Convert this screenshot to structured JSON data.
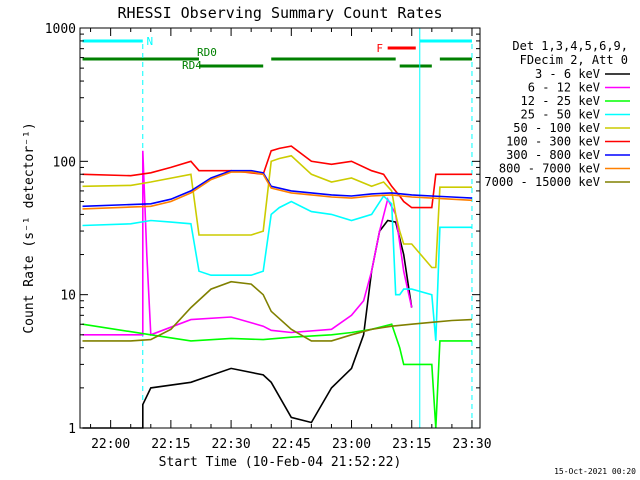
{
  "chart_data": {
    "type": "line",
    "title": "RHESSI Observing Summary Count Rates",
    "xlabel": "Start Time (10-Feb-04 21:52:22)",
    "ylabel": "Count Rate (s⁻¹ detector⁻¹)",
    "yscale": "log",
    "ylim": [
      1,
      1000
    ],
    "xlim": [
      "21:52:22",
      "23:32:00"
    ],
    "grid": false,
    "legend_position": "right",
    "x_ticks": [
      "22:00",
      "22:15",
      "22:30",
      "22:45",
      "23:00",
      "23:15",
      "23:30"
    ],
    "y_ticks": [
      "1",
      "10",
      "100",
      "1000"
    ],
    "legend_header": [
      "Det 1,3,4,5,6,9,",
      "FDecim 2, Att 0"
    ],
    "timestamp": "15-Oct-2021 00:20",
    "flags": [
      {
        "label": "N",
        "color": "#00ffff",
        "segments": [
          [
            "21:53",
            "22:08"
          ],
          [
            "23:17",
            "23:30"
          ]
        ]
      },
      {
        "label": "F",
        "color": "#ff0000",
        "segments": [
          [
            "23:09",
            "23:16"
          ]
        ]
      },
      {
        "label": "RD0",
        "color": "#008000",
        "segments": [
          [
            "21:53",
            "22:22"
          ],
          [
            "22:40",
            "23:11"
          ],
          [
            "23:22",
            "23:30"
          ]
        ]
      },
      {
        "label": "RD4",
        "color": "#008000",
        "segments": [
          [
            "22:22",
            "22:38"
          ],
          [
            "23:12",
            "23:20"
          ]
        ]
      }
    ],
    "series": [
      {
        "name": "3 - 6 keV",
        "color": "#000000",
        "x": [
          "21:53",
          "22:08",
          "22:08",
          "22:10",
          "22:20",
          "22:30",
          "22:38",
          "22:40",
          "22:45",
          "22:50",
          "22:55",
          "23:00",
          "23:03",
          "23:05",
          "23:07",
          "23:09",
          "23:11",
          "23:13",
          "23:15"
        ],
        "y": [
          1,
          1,
          1.5,
          2,
          2.2,
          2.8,
          2.5,
          2.2,
          1.2,
          1.1,
          2,
          2.8,
          5,
          15,
          30,
          36,
          35,
          20,
          8
        ]
      },
      {
        "name": "6 - 12 keV",
        "color": "#ff00ff",
        "x": [
          "21:53",
          "22:08",
          "22:08",
          "22:09",
          "22:10",
          "22:20",
          "22:30",
          "22:38",
          "22:40",
          "22:45",
          "22:55",
          "23:00",
          "23:03",
          "23:05",
          "23:07",
          "23:09",
          "23:11",
          "23:13",
          "23:15"
        ],
        "y": [
          5,
          5,
          120,
          20,
          5,
          6.5,
          6.8,
          5.8,
          5.4,
          5.2,
          5.5,
          7,
          9,
          15,
          30,
          52,
          40,
          15,
          8
        ]
      },
      {
        "name": "12 - 25 keV",
        "color": "#00ff00",
        "x": [
          "21:53",
          "22:10",
          "22:20",
          "22:30",
          "22:38",
          "22:45",
          "22:55",
          "23:00",
          "23:05",
          "23:10",
          "23:12",
          "23:13",
          "23:15",
          "23:20",
          "23:21",
          "23:22",
          "23:30"
        ],
        "y": [
          6,
          5,
          4.5,
          4.7,
          4.6,
          4.8,
          5,
          5.2,
          5.5,
          6,
          4,
          3,
          3,
          3,
          1,
          4.5,
          4.5
        ]
      },
      {
        "name": "25 - 50 keV",
        "color": "#00ffff",
        "x": [
          "21:53",
          "22:05",
          "22:10",
          "22:15",
          "22:20",
          "22:22",
          "22:25",
          "22:30",
          "22:35",
          "22:38",
          "22:40",
          "22:42",
          "22:45",
          "22:50",
          "22:55",
          "23:00",
          "23:05",
          "23:08",
          "23:10",
          "23:11",
          "23:12",
          "23:13",
          "23:15",
          "23:20",
          "23:21",
          "23:22",
          "23:25",
          "23:30"
        ],
        "y": [
          33,
          34,
          36,
          35,
          34,
          15,
          14,
          14,
          14,
          15,
          40,
          45,
          50,
          42,
          40,
          36,
          40,
          55,
          48,
          10,
          10,
          11,
          11,
          10,
          4.5,
          32,
          32,
          32
        ]
      },
      {
        "name": "50 - 100 keV",
        "color": "#cccc00",
        "x": [
          "21:53",
          "22:05",
          "22:10",
          "22:20",
          "22:22",
          "22:25",
          "22:30",
          "22:35",
          "22:38",
          "22:40",
          "22:42",
          "22:45",
          "22:50",
          "22:55",
          "23:00",
          "23:05",
          "23:08",
          "23:10",
          "23:11",
          "23:12",
          "23:13",
          "23:15",
          "23:20",
          "23:21",
          "23:22",
          "23:25",
          "23:30"
        ],
        "y": [
          65,
          66,
          70,
          80,
          28,
          28,
          28,
          28,
          30,
          100,
          105,
          110,
          80,
          70,
          75,
          65,
          70,
          60,
          40,
          30,
          24,
          24,
          16,
          16,
          64,
          64,
          64
        ]
      },
      {
        "name": "100 - 300 keV",
        "color": "#ff0000",
        "x": [
          "21:53",
          "22:05",
          "22:10",
          "22:15",
          "22:20",
          "22:22",
          "22:25",
          "22:30",
          "22:35",
          "22:38",
          "22:40",
          "22:42",
          "22:45",
          "22:50",
          "22:55",
          "23:00",
          "23:05",
          "23:08",
          "23:10",
          "23:12",
          "23:13",
          "23:15",
          "23:18",
          "23:20",
          "23:21",
          "23:22",
          "23:25",
          "23:30"
        ],
        "y": [
          80,
          78,
          82,
          90,
          100,
          85,
          85,
          85,
          82,
          80,
          120,
          125,
          130,
          100,
          95,
          100,
          85,
          80,
          65,
          55,
          50,
          45,
          45,
          45,
          80,
          80,
          80,
          80
        ]
      },
      {
        "name": "300 - 800 keV",
        "color": "#0000ff",
        "x": [
          "21:53",
          "22:10",
          "22:15",
          "22:20",
          "22:25",
          "22:30",
          "22:35",
          "22:38",
          "22:40",
          "22:45",
          "22:50",
          "22:55",
          "23:00",
          "23:05",
          "23:10",
          "23:15",
          "23:20",
          "23:25",
          "23:30"
        ],
        "y": [
          46,
          48,
          52,
          60,
          75,
          85,
          85,
          82,
          65,
          60,
          58,
          56,
          55,
          57,
          58,
          56,
          55,
          54,
          53
        ]
      },
      {
        "name": "800 - 7000 keV",
        "color": "#ff8000",
        "x": [
          "21:53",
          "22:10",
          "22:15",
          "22:20",
          "22:25",
          "22:30",
          "22:35",
          "22:38",
          "22:40",
          "22:45",
          "22:50",
          "22:55",
          "23:00",
          "23:05",
          "23:10",
          "23:15",
          "23:20",
          "23:25",
          "23:30"
        ],
        "y": [
          44,
          46,
          50,
          58,
          73,
          83,
          83,
          80,
          63,
          58,
          56,
          54,
          53,
          55,
          56,
          54,
          53,
          52,
          51
        ]
      },
      {
        "name": "7000 - 15000 keV",
        "color": "#808000",
        "x": [
          "21:53",
          "22:05",
          "22:10",
          "22:15",
          "22:20",
          "22:25",
          "22:30",
          "22:35",
          "22:38",
          "22:40",
          "22:45",
          "22:50",
          "22:55",
          "23:00",
          "23:05",
          "23:10",
          "23:15",
          "23:20",
          "23:25",
          "23:30"
        ],
        "y": [
          4.5,
          4.5,
          4.6,
          5.5,
          8,
          11,
          12.5,
          12,
          10,
          7.5,
          5.5,
          4.5,
          4.5,
          5,
          5.5,
          5.8,
          6,
          6.2,
          6.4,
          6.5
        ]
      }
    ]
  }
}
